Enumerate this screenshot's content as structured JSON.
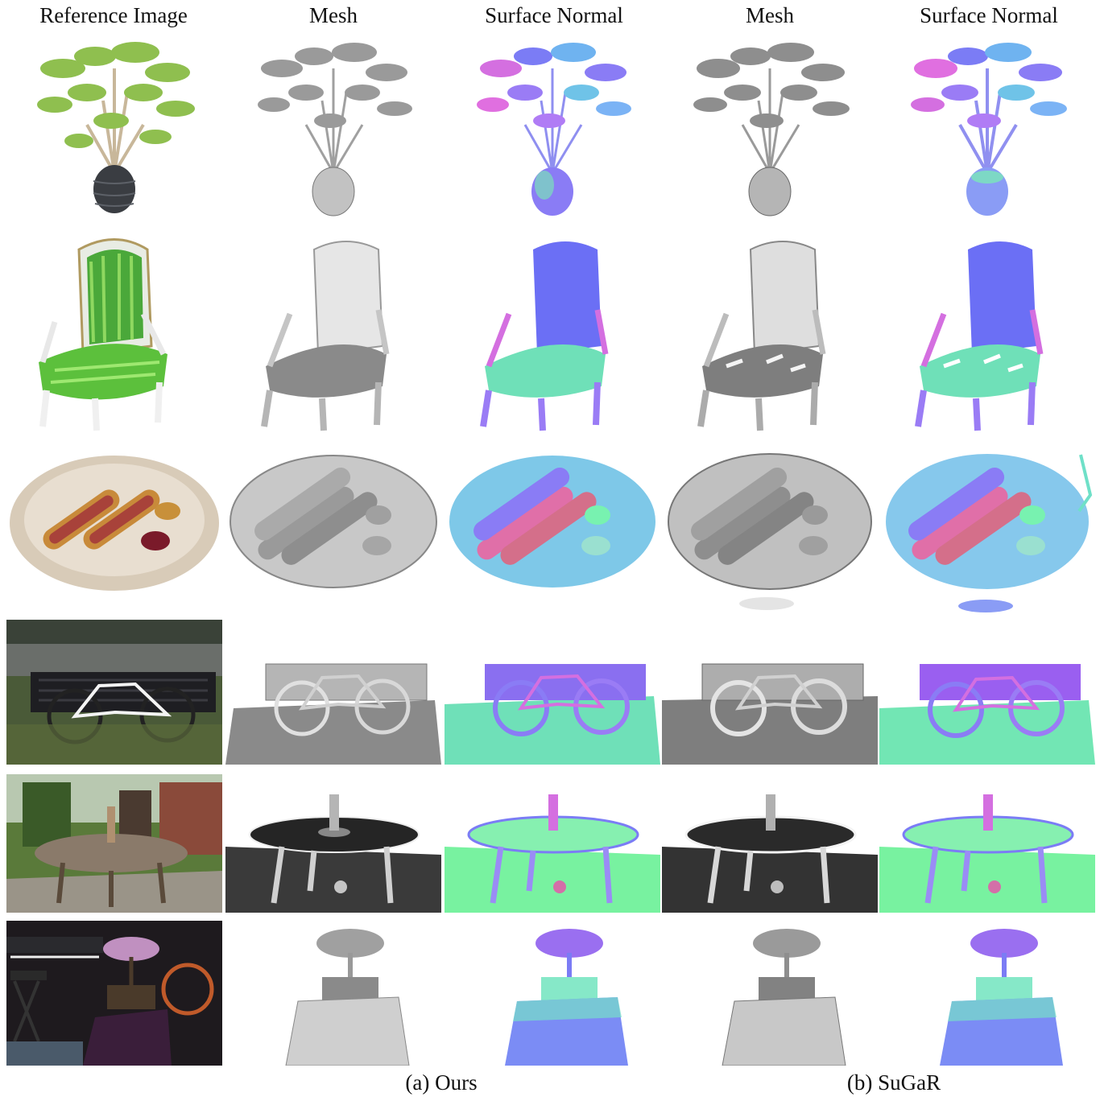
{
  "headers": {
    "col1": "Reference Image",
    "col2": "Mesh",
    "col3": "Surface Normal",
    "col4": "Mesh",
    "col5": "Surface Normal"
  },
  "captions": {
    "ours": "(a) Ours",
    "sugar": "(b) SuGaR"
  },
  "colors": {
    "mesh_gray": "#b9b9b9",
    "normal_blue": "#7b7cf5",
    "normal_green": "#78f2b0",
    "normal_pink": "#e06fe0"
  }
}
